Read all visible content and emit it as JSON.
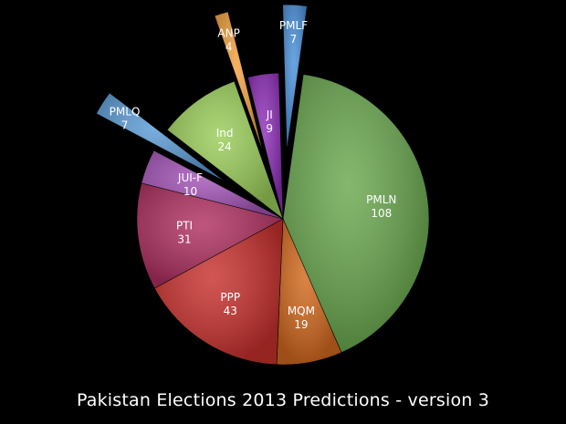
{
  "chart_data": {
    "type": "pie",
    "title": "Pakistan Elections 2013 Predictions - version 3",
    "slices": [
      {
        "label": "PMLN",
        "value": 108,
        "color": "#6aa84f",
        "exploded": false
      },
      {
        "label": "MQM",
        "value": 19,
        "color": "#d2691e",
        "exploded": false
      },
      {
        "label": "PPP",
        "value": 43,
        "color": "#c8312e",
        "exploded": false
      },
      {
        "label": "PTI",
        "value": 31,
        "color": "#b03060",
        "exploded": false
      },
      {
        "label": "JUI-F",
        "value": 10,
        "color": "#a455b8",
        "exploded": false
      },
      {
        "label": "PMLQ",
        "value": 7,
        "color": "#5b9bd5",
        "exploded": true
      },
      {
        "label": "Ind",
        "value": 24,
        "color": "#9acd59",
        "exploded": false
      },
      {
        "label": "ANP",
        "value": 4,
        "color": "#f4a340",
        "exploded": true
      },
      {
        "label": "JI",
        "value": 9,
        "color": "#8e2fb8",
        "exploded": false
      },
      {
        "label": "PMLF",
        "value": 7,
        "color": "#4a90d9",
        "exploded": true
      }
    ]
  }
}
